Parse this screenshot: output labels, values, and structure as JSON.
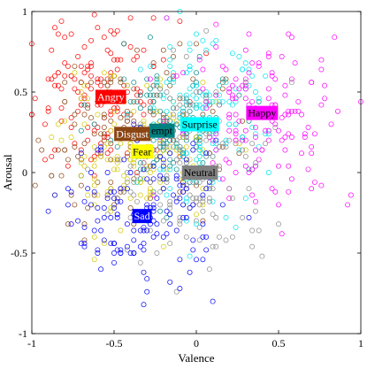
{
  "chart_data": {
    "type": "scatter",
    "xlabel": "Valence",
    "ylabel": "Arousal",
    "xlim": [
      -1,
      1
    ],
    "ylim": [
      -1,
      1
    ],
    "xticks": [
      -1,
      -0.5,
      0,
      0.5,
      1
    ],
    "yticks": [
      1,
      0.5,
      0,
      -0.5,
      -1
    ],
    "xtick_labels": [
      "-1",
      "-0.5",
      "0",
      "0.5",
      "1"
    ],
    "ytick_labels": [
      "1",
      "0.5",
      "0",
      "-0.5",
      "-1"
    ],
    "grid": false,
    "legend": "none",
    "marker": "open circle",
    "series": [
      {
        "name": "Angry",
        "color": "#ff0000",
        "center": [
          -0.58,
          0.47
        ],
        "spread": [
          0.24,
          0.24
        ],
        "label_bg": "#ff0000",
        "label_fg": "#ffffff"
      },
      {
        "name": "Disgust",
        "color": "#8b4513",
        "center": [
          -0.4,
          0.24
        ],
        "spread": [
          0.28,
          0.28
        ],
        "label_bg": "#8b4513",
        "label_fg": "#ffffff"
      },
      {
        "name": "Contempt",
        "color": "#008b8b",
        "center": [
          -0.2,
          0.25
        ],
        "spread": [
          0.2,
          0.2
        ],
        "label_bg": "#008080",
        "label_fg": "#000000"
      },
      {
        "name": "Fear",
        "color": "#d4c800",
        "center": [
          -0.33,
          0.13
        ],
        "spread": [
          0.24,
          0.22
        ],
        "label_bg": "#ffff00",
        "label_fg": "#000000"
      },
      {
        "name": "Surprise",
        "color": "#00e5ee",
        "center": [
          0.02,
          0.3
        ],
        "spread": [
          0.2,
          0.25
        ],
        "label_bg": "#00ffff",
        "label_fg": "#000000"
      },
      {
        "name": "Happy",
        "color": "#ff00ff",
        "center": [
          0.4,
          0.36
        ],
        "spread": [
          0.28,
          0.28
        ],
        "label_bg": "#ff00ff",
        "label_fg": "#000000"
      },
      {
        "name": "Neutral",
        "color": "#8c8c8c",
        "center": [
          -0.02,
          0.0
        ],
        "spread": [
          0.24,
          0.32
        ],
        "label_bg": "#808080",
        "label_fg": "#000000"
      },
      {
        "name": "Sad",
        "color": "#0000ff",
        "center": [
          -0.33,
          -0.27
        ],
        "spread": [
          0.24,
          0.22
        ],
        "label_bg": "#0000ff",
        "label_fg": "#ffffff"
      }
    ],
    "labels": [
      {
        "text": "Angry",
        "series": 0,
        "x": -0.52,
        "y": 0.47
      },
      {
        "text": "Disgust",
        "series": 1,
        "x": -0.39,
        "y": 0.24
      },
      {
        "text": "empt",
        "series": 2,
        "x": -0.21,
        "y": 0.26
      },
      {
        "text": "Fear",
        "series": 3,
        "x": -0.33,
        "y": 0.13
      },
      {
        "text": "Surprise",
        "series": 4,
        "x": 0.02,
        "y": 0.3
      },
      {
        "text": "Happy",
        "series": 5,
        "x": 0.4,
        "y": 0.37
      },
      {
        "text": "Neutral",
        "series": 6,
        "x": 0.02,
        "y": 0.0
      },
      {
        "text": "Sad",
        "series": 7,
        "x": -0.33,
        "y": -0.27
      }
    ]
  }
}
